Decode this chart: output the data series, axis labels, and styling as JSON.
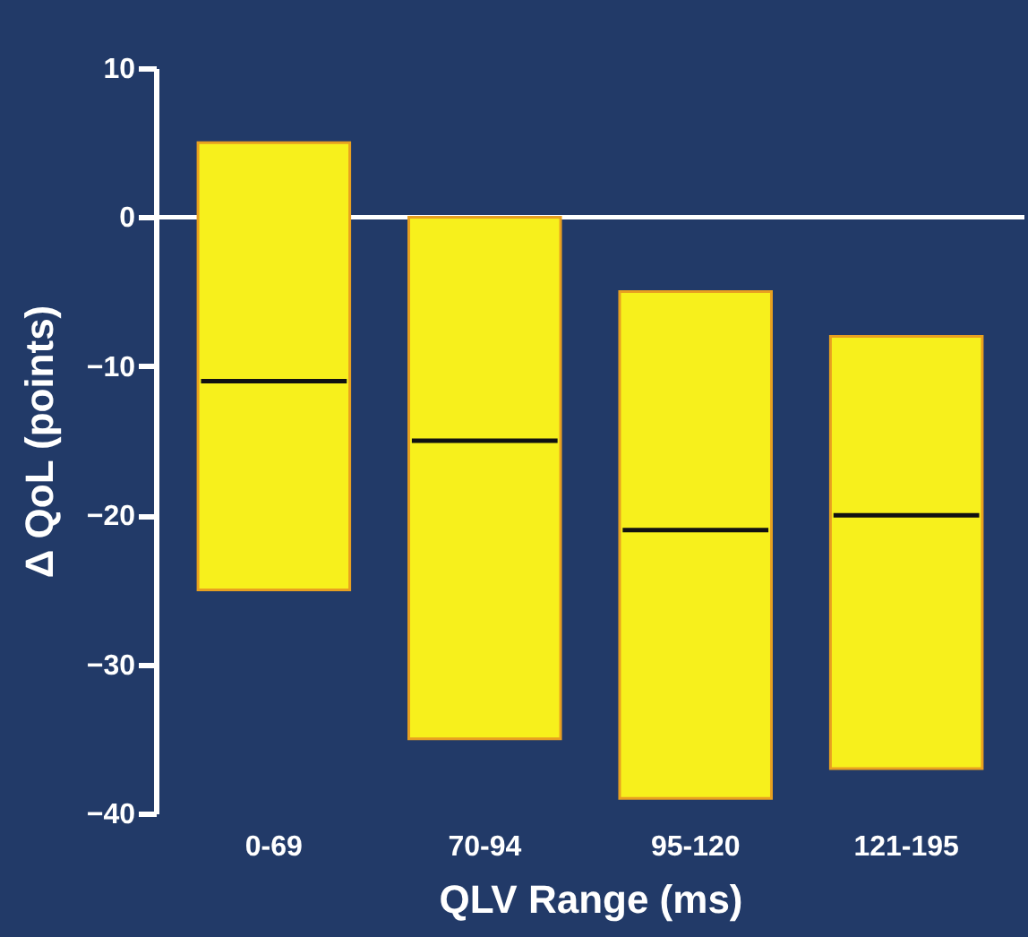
{
  "chart_data": {
    "type": "box",
    "categories": [
      "0-69",
      "70-94",
      "95-120",
      "121-195"
    ],
    "series": [
      {
        "color": "#f7f01c",
        "boxes": [
          {
            "low": -25,
            "q1": -25,
            "median": -11,
            "q3": 5,
            "high": 5
          },
          {
            "low": -35,
            "q1": -35,
            "median": -15,
            "q3": 0,
            "high": 0
          },
          {
            "low": -39,
            "q1": -39,
            "median": -21,
            "q3": -5,
            "high": -5
          },
          {
            "low": -37,
            "q1": -37,
            "median": -20,
            "q3": -8,
            "high": -8
          }
        ]
      }
    ],
    "xlabel": "QLV Range (ms)",
    "ylabel": "Δ QoL (points)",
    "ylim": [
      -40,
      10
    ],
    "yticks": [
      -40,
      -30,
      -20,
      -10,
      0,
      10
    ],
    "ref_lines": [
      {
        "axis": "y",
        "value": 0,
        "color": "#ffffff"
      }
    ],
    "grid": false
  }
}
